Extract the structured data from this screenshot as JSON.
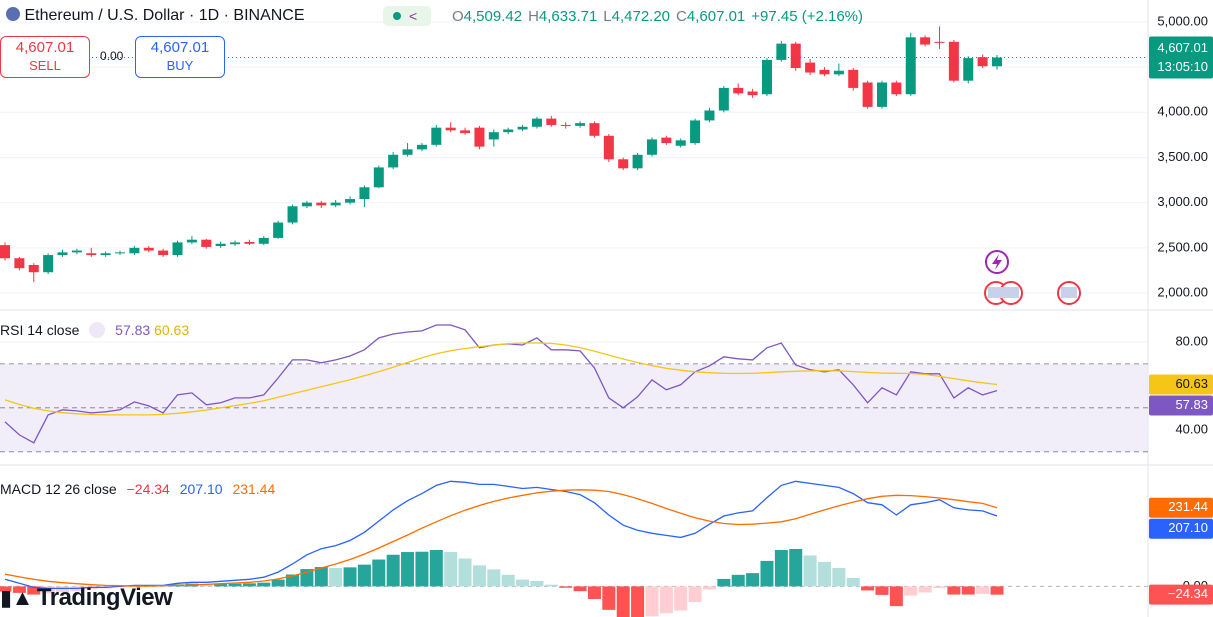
{
  "chart_data": [
    {
      "type": "candlestick",
      "title": "Ethereum / U.S. Dollar · 1D · BINANCE",
      "ohlc_legend": [
        {
          "key": "O",
          "text": "4,509.42"
        },
        {
          "key": "H",
          "text": "4,633.71"
        },
        {
          "key": "L",
          "text": "4,472.20"
        },
        {
          "key": "C",
          "text": "4,607.01"
        }
      ],
      "change": "+97.45 (+2.16%)",
      "open": [
        2530,
        2385,
        2310,
        2230,
        2420,
        2450,
        2440,
        2420,
        2440,
        2440,
        2500,
        2470,
        2420,
        2560,
        2590,
        2520,
        2540,
        2565,
        2545,
        2610,
        2780,
        2960,
        3000,
        2970,
        3000,
        3040,
        3170,
        3390,
        3530,
        3590,
        3640,
        3830,
        3800,
        3830,
        3700,
        3780,
        3810,
        3840,
        3930,
        3860,
        3850,
        3880,
        3740,
        3480,
        3380,
        3530,
        3720,
        3630,
        3660,
        3910,
        4020,
        4270,
        4230,
        4200,
        4580,
        4760,
        4550,
        4470,
        4420,
        4470,
        4330,
        4060,
        4330,
        4200,
        4830,
        4780,
        4780,
        4350,
        4610,
        4509.42
      ],
      "high": [
        2560,
        2400,
        2330,
        2440,
        2480,
        2490,
        2500,
        2460,
        2470,
        2520,
        2520,
        2490,
        2580,
        2630,
        2600,
        2570,
        2580,
        2590,
        2630,
        2800,
        2980,
        3020,
        3020,
        3030,
        3070,
        3190,
        3410,
        3560,
        3660,
        3660,
        3860,
        3890,
        3830,
        3850,
        3810,
        3830,
        3860,
        3950,
        3960,
        3890,
        3900,
        3900,
        3760,
        3500,
        3550,
        3720,
        3740,
        3710,
        3930,
        4050,
        4290,
        4320,
        4260,
        4600,
        4790,
        4780,
        4590,
        4500,
        4540,
        4490,
        4350,
        4350,
        4350,
        4880,
        4850,
        4950,
        4800,
        4620,
        4640,
        4633.71
      ],
      "low": [
        2360,
        2250,
        2120,
        2210,
        2400,
        2430,
        2400,
        2400,
        2420,
        2420,
        2450,
        2400,
        2400,
        2540,
        2490,
        2500,
        2520,
        2530,
        2530,
        2600,
        2760,
        2940,
        2940,
        2950,
        2980,
        2950,
        3160,
        3370,
        3510,
        3570,
        3620,
        3780,
        3750,
        3590,
        3620,
        3760,
        3790,
        3820,
        3840,
        3820,
        3830,
        3720,
        3450,
        3360,
        3360,
        3510,
        3640,
        3610,
        3640,
        3890,
        4000,
        4190,
        4160,
        4180,
        4560,
        4460,
        4410,
        4400,
        4400,
        4240,
        4040,
        4040,
        4180,
        4180,
        4730,
        4700,
        4330,
        4320,
        4490,
        4472.2
      ],
      "close": [
        2385,
        2275,
        2230,
        2420,
        2450,
        2470,
        2420,
        2440,
        2450,
        2500,
        2470,
        2420,
        2560,
        2590,
        2510,
        2545,
        2560,
        2545,
        2610,
        2780,
        2960,
        3000,
        2970,
        3000,
        3040,
        3170,
        3390,
        3530,
        3590,
        3640,
        3830,
        3800,
        3770,
        3620,
        3780,
        3810,
        3840,
        3930,
        3860,
        3850,
        3880,
        3740,
        3480,
        3380,
        3530,
        3700,
        3660,
        3690,
        3910,
        4020,
        4270,
        4210,
        4190,
        4580,
        4760,
        4490,
        4440,
        4420,
        4460,
        4270,
        4060,
        4330,
        4200,
        4830,
        4750,
        4770,
        4350,
        4600,
        4510,
        4607.01
      ],
      "last_value_label": "4,607.01",
      "countdown": "13:05:10",
      "up_color": "#089981",
      "down_color": "#f23645",
      "ylim": [
        1812,
        5243
      ],
      "yticks": [
        {
          "value": 2000,
          "label": "2,000.00"
        },
        {
          "value": 2500,
          "label": "2,500.00"
        },
        {
          "value": 3000,
          "label": "3,000.00"
        },
        {
          "value": 3500,
          "label": "3,500.00"
        },
        {
          "value": 4000,
          "label": "4,000.00"
        },
        {
          "value": 4500,
          "label": "4,500.00"
        },
        {
          "value": 5000,
          "label": "5,000.00"
        }
      ],
      "grid": true
    },
    {
      "type": "line",
      "title": "RSI 14 close",
      "series": [
        {
          "color": "#7e57c2",
          "values": [
            43.6,
            37.7,
            34.1,
            46.8,
            49.1,
            48.6,
            47.7,
            48.2,
            49.1,
            52.7,
            50.9,
            47.7,
            55.9,
            56.8,
            51.4,
            52.3,
            54.5,
            54.5,
            55.9,
            63.6,
            71.8,
            71.8,
            70.5,
            71.8,
            73.6,
            76.4,
            81.8,
            83.6,
            84.5,
            85,
            87.7,
            87.7,
            85.5,
            77.3,
            78.6,
            79.1,
            78.6,
            81.8,
            76.4,
            76.4,
            75.9,
            68.2,
            54.5,
            50,
            55,
            62.7,
            58.2,
            60.5,
            66.4,
            69.1,
            73.2,
            72.3,
            71.8,
            77.3,
            79.5,
            69.5,
            67.3,
            66.4,
            67.3,
            60.5,
            52.3,
            59.1,
            55.9,
            66.4,
            65.5,
            65.5,
            54.5,
            59.1,
            55.9,
            57.83
          ]
        },
        {
          "color": "#f5c518",
          "values": [
            53.6,
            51.5,
            49.8,
            48.6,
            47.8,
            47.3,
            47,
            46.8,
            46.8,
            46.8,
            46.8,
            47,
            47.5,
            48.2,
            49,
            50,
            51,
            52,
            53.2,
            54.8,
            56.4,
            58,
            59.6,
            61.2,
            62.8,
            64.6,
            66.5,
            68.5,
            70.6,
            72.7,
            74.6,
            76,
            77,
            77.8,
            78.5,
            79.2,
            79.5,
            79.5,
            79.3,
            78.6,
            77.4,
            75.8,
            74,
            72.2,
            70.6,
            69.2,
            68,
            67.1,
            66.4,
            66,
            65.7,
            65.6,
            65.7,
            66,
            66.4,
            66.6,
            66.8,
            66.9,
            66.8,
            66.5,
            66.1,
            65.8,
            65.7,
            65.6,
            65.2,
            64.3,
            63.3,
            62.3,
            61.4,
            60.63
          ]
        }
      ],
      "levels": [
        70,
        50,
        30
      ],
      "band_color": "#ede7f6",
      "ylim": [
        24,
        94.5
      ],
      "yticks": [
        {
          "value": 40,
          "label": "40.00"
        },
        {
          "value": 80,
          "label": "80.00"
        }
      ]
    },
    {
      "type": "macd",
      "title": "MACD 12 26 close",
      "histogram": {
        "values": [
          -15,
          -19,
          -24,
          -21,
          -17,
          -14,
          -8,
          -6,
          -2,
          2,
          2,
          1,
          6,
          8,
          6,
          7,
          8,
          9,
          11,
          20,
          35,
          51,
          57,
          54,
          56,
          64,
          79,
          93,
          101,
          102,
          107,
          101,
          82,
          62,
          50,
          34,
          20,
          16,
          5,
          -4,
          -14,
          -37,
          -69,
          -90,
          -93,
          -88,
          -79,
          -71,
          -46,
          -9,
          22,
          34,
          39,
          75,
          107,
          110,
          91,
          72,
          54,
          25,
          -12,
          -25,
          -58,
          -27,
          -18,
          -5,
          -24,
          -24,
          -22,
          -24.34
        ],
        "last_value_label": "−24.34",
        "colors": {
          "rising_above": "#26a69a",
          "falling_above": "#b2dfdb",
          "rising_below": "#ffcdd2",
          "falling_below": "#ff5252"
        }
      },
      "series": [
        {
          "color": "#2962ff",
          "last_value_label": "207.10",
          "values": [
            21,
            9,
            -3,
            -6,
            -6,
            -6,
            -3,
            -3,
            0,
            3,
            3,
            3,
            9,
            12,
            12,
            15,
            18,
            21,
            27,
            42,
            66,
            93,
            111,
            120,
            135,
            159,
            192,
            225,
            252,
            273,
            297,
            309,
            306,
            300,
            300,
            294,
            288,
            291,
            285,
            279,
            270,
            246,
            210,
            180,
            165,
            156,
            150,
            144,
            156,
            183,
            207,
            216,
            222,
            261,
            297,
            309,
            303,
            297,
            291,
            273,
            246,
            240,
            210,
            240,
            246,
            255,
            231,
            225,
            222,
            207.1
          ]
        },
        {
          "color": "#ff6d00",
          "last_value_label": "231.44",
          "values": [
            36,
            28,
            21,
            15,
            11,
            8,
            5,
            3,
            2,
            1,
            1,
            2,
            3,
            4,
            6,
            8,
            10,
            12,
            16,
            22,
            31,
            42,
            54,
            66,
            79,
            95,
            113,
            132,
            151,
            171,
            190,
            208,
            224,
            238,
            250,
            260,
            268,
            275,
            280,
            283,
            284,
            283,
            279,
            270,
            258,
            244,
            229,
            215,
            202,
            192,
            185,
            182,
            183,
            186,
            190,
            199,
            212,
            225,
            237,
            248,
            258,
            265,
            268,
            267,
            264,
            260,
            255,
            249,
            244,
            231.44
          ]
        }
      ],
      "ylim": [
        -90,
        357
      ],
      "yticks": [
        {
          "value": 0,
          "label": "0.00"
        }
      ]
    }
  ],
  "trade": {
    "sell_price": "4,607.01",
    "sell": "SELL",
    "spread": "0.00",
    "buy_price": "4,607.01",
    "buy": "BUY"
  },
  "branding": {
    "logo": "TradingView"
  }
}
